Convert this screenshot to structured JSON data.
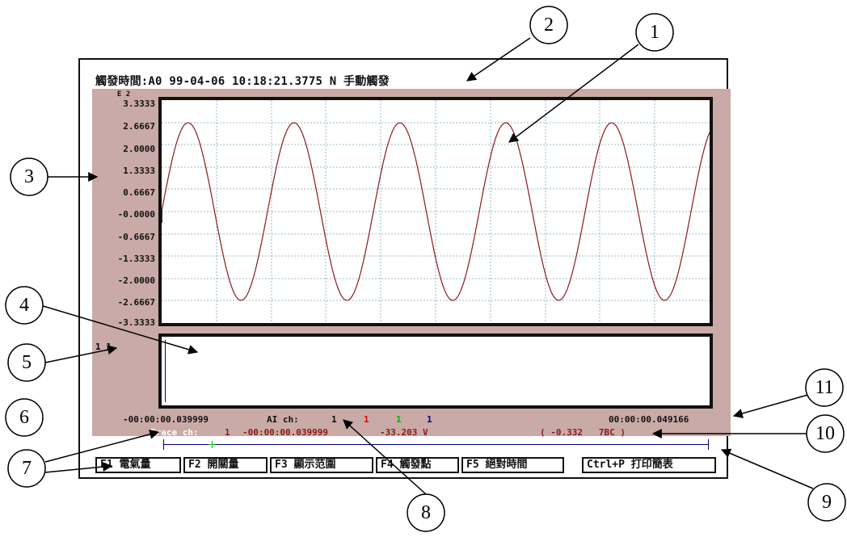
{
  "header": {
    "title": "觸發時間:A0 99-04-06 10:18:21.3775 N 手動觸發"
  },
  "main_plot": {
    "scale_label": "E 2",
    "y_ticks": [
      "3.3333",
      "2.6667",
      "2.0000",
      "1.3333",
      "0.6667",
      "-0.0000",
      "-0.6667",
      "-1.3333",
      "-2.0000",
      "-2.6667",
      "-3.3333"
    ]
  },
  "sub_plot": {
    "channel_label": "1 1"
  },
  "status": {
    "start_time": "-00:00:00.039999",
    "ai_ch_label": "AI ch:",
    "ai_ch_values": [
      "1",
      "1",
      "1",
      "1"
    ],
    "end_time": "00:00:00.049166",
    "trace_label": "Trace ch:",
    "trace_channel": "1",
    "trace_time": "-00:00:00.039999",
    "trace_value": "-33.203 V",
    "cursor_info": "( -0.332   7BC )"
  },
  "function_keys": [
    {
      "label": "F1 電氣量"
    },
    {
      "label": "F2 開關量"
    },
    {
      "label": "F3 顯示范圍"
    },
    {
      "label": "F4 觸發點"
    },
    {
      "label": "F5 絕對時間"
    },
    {
      "label": "Ctrl+P 打印簡表"
    }
  ],
  "callouts": [
    "1",
    "2",
    "3",
    "4",
    "5",
    "6",
    "7",
    "8",
    "9",
    "10",
    "11"
  ],
  "colors": {
    "panel": "#c9aaa6",
    "waveform": "#8b1a1a",
    "grid": "#7aa6b8",
    "ch_red": "#e00000",
    "ch_green": "#00b000",
    "ch_blue": "#000099",
    "time_bar": "#000080"
  }
}
